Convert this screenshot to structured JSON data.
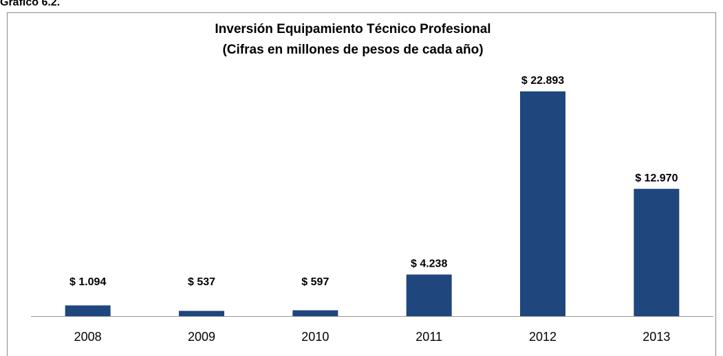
{
  "caption": "Gráfico 6.2.",
  "chart_data": {
    "type": "bar",
    "title": "Inversión Equipamiento Técnico Profesional",
    "subtitle": "(Cifras en millones de pesos de cada año)",
    "categories": [
      "2008",
      "2009",
      "2010",
      "2011",
      "2012",
      "2013"
    ],
    "values": [
      1094,
      537,
      597,
      4238,
      22893,
      12970
    ],
    "value_labels": [
      "$ 1.094",
      "$ 537",
      "$ 597",
      "$ 4.238",
      "$ 22.893",
      "$ 12.970"
    ],
    "color": "#1f477d"
  }
}
